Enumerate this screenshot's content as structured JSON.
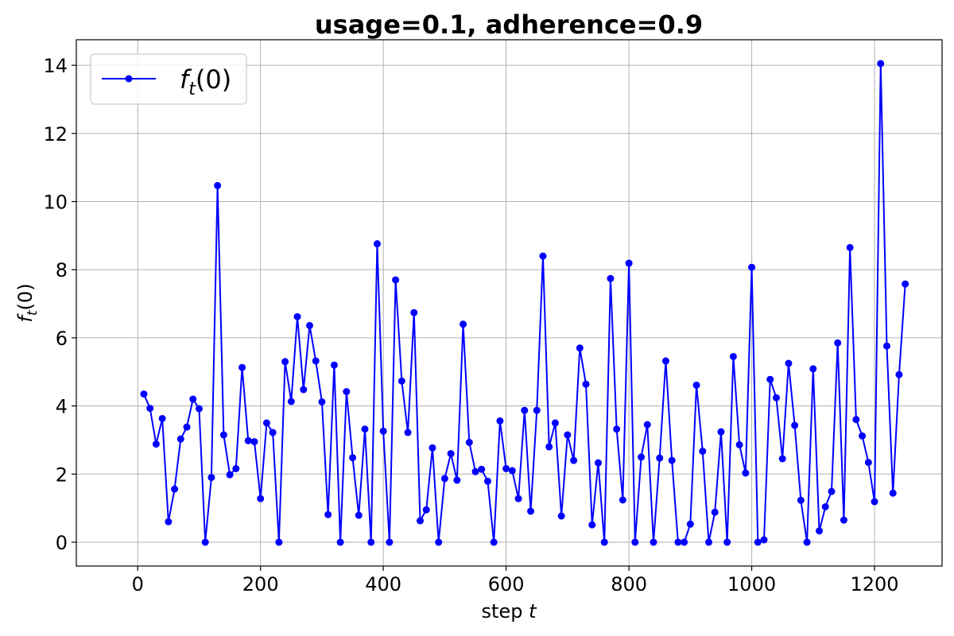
{
  "chart_data": {
    "type": "line",
    "title": "usage=0.1, adherence=0.9",
    "xlabel": "step t",
    "ylabel": "f_t(0)",
    "xlim": [
      -100,
      1310
    ],
    "ylim": [
      -0.7,
      14.75
    ],
    "xticks": [
      0,
      200,
      400,
      600,
      800,
      1000,
      1200
    ],
    "yticks": [
      0,
      2,
      4,
      6,
      8,
      10,
      12,
      14
    ],
    "grid": true,
    "legend_position": "top-left",
    "series": [
      {
        "name": "f_t(0)",
        "color": "#0000ff",
        "marker": "circle",
        "x": [
          10,
          20,
          30,
          40,
          50,
          60,
          70,
          80,
          90,
          100,
          110,
          120,
          130,
          140,
          150,
          160,
          170,
          180,
          190,
          200,
          210,
          220,
          230,
          240,
          250,
          260,
          270,
          280,
          290,
          300,
          310,
          320,
          330,
          340,
          350,
          360,
          370,
          380,
          390,
          400,
          410,
          420,
          430,
          440,
          450,
          460,
          470,
          480,
          490,
          500,
          510,
          520,
          530,
          540,
          550,
          560,
          570,
          580,
          590,
          600,
          610,
          620,
          630,
          640,
          650,
          660,
          670,
          680,
          690,
          700,
          710,
          720,
          730,
          740,
          750,
          760,
          770,
          780,
          790,
          800,
          810,
          820,
          830,
          840,
          850,
          860,
          870,
          880,
          890,
          900,
          910,
          920,
          930,
          940,
          950,
          960,
          970,
          980,
          990,
          1000,
          1010,
          1020,
          1030,
          1040,
          1050,
          1060,
          1070,
          1080,
          1090,
          1100,
          1110,
          1120,
          1130,
          1140,
          1150,
          1160,
          1170,
          1180,
          1190,
          1200,
          1210,
          1220,
          1230,
          1240,
          1250
        ],
        "y": [
          4.35,
          3.93,
          2.88,
          3.63,
          0.6,
          1.56,
          3.03,
          3.38,
          4.2,
          3.92,
          0,
          1.9,
          10.47,
          3.15,
          1.98,
          2.16,
          5.13,
          2.98,
          2.95,
          1.28,
          3.5,
          3.22,
          0,
          5.3,
          4.13,
          6.62,
          4.48,
          6.36,
          5.32,
          4.12,
          0.81,
          5.2,
          0,
          4.42,
          2.48,
          0.79,
          3.32,
          0,
          8.76,
          3.26,
          0,
          7.7,
          4.73,
          3.22,
          6.74,
          0.63,
          0.95,
          2.77,
          0,
          1.87,
          2.6,
          1.82,
          6.4,
          2.93,
          2.07,
          2.14,
          1.79,
          0,
          3.56,
          2.16,
          2.1,
          1.28,
          3.87,
          0.91,
          3.87,
          8.4,
          2.8,
          3.5,
          0.77,
          3.15,
          2.4,
          5.7,
          4.64,
          0.51,
          2.33,
          0,
          7.74,
          3.32,
          1.24,
          8.19,
          0,
          2.5,
          3.45,
          0,
          2.47,
          5.32,
          2.4,
          0,
          0,
          0.53,
          4.61,
          2.67,
          0,
          0.88,
          3.24,
          0,
          5.45,
          2.86,
          2.03,
          8.07,
          0,
          0.07,
          4.78,
          4.24,
          2.45,
          5.25,
          3.43,
          1.23,
          0,
          5.09,
          0.33,
          1.04,
          1.49,
          5.85,
          0.65,
          8.65,
          3.6,
          3.12,
          2.34,
          1.19,
          14.05,
          5.76,
          1.44,
          4.92,
          7.58
        ]
      }
    ]
  }
}
